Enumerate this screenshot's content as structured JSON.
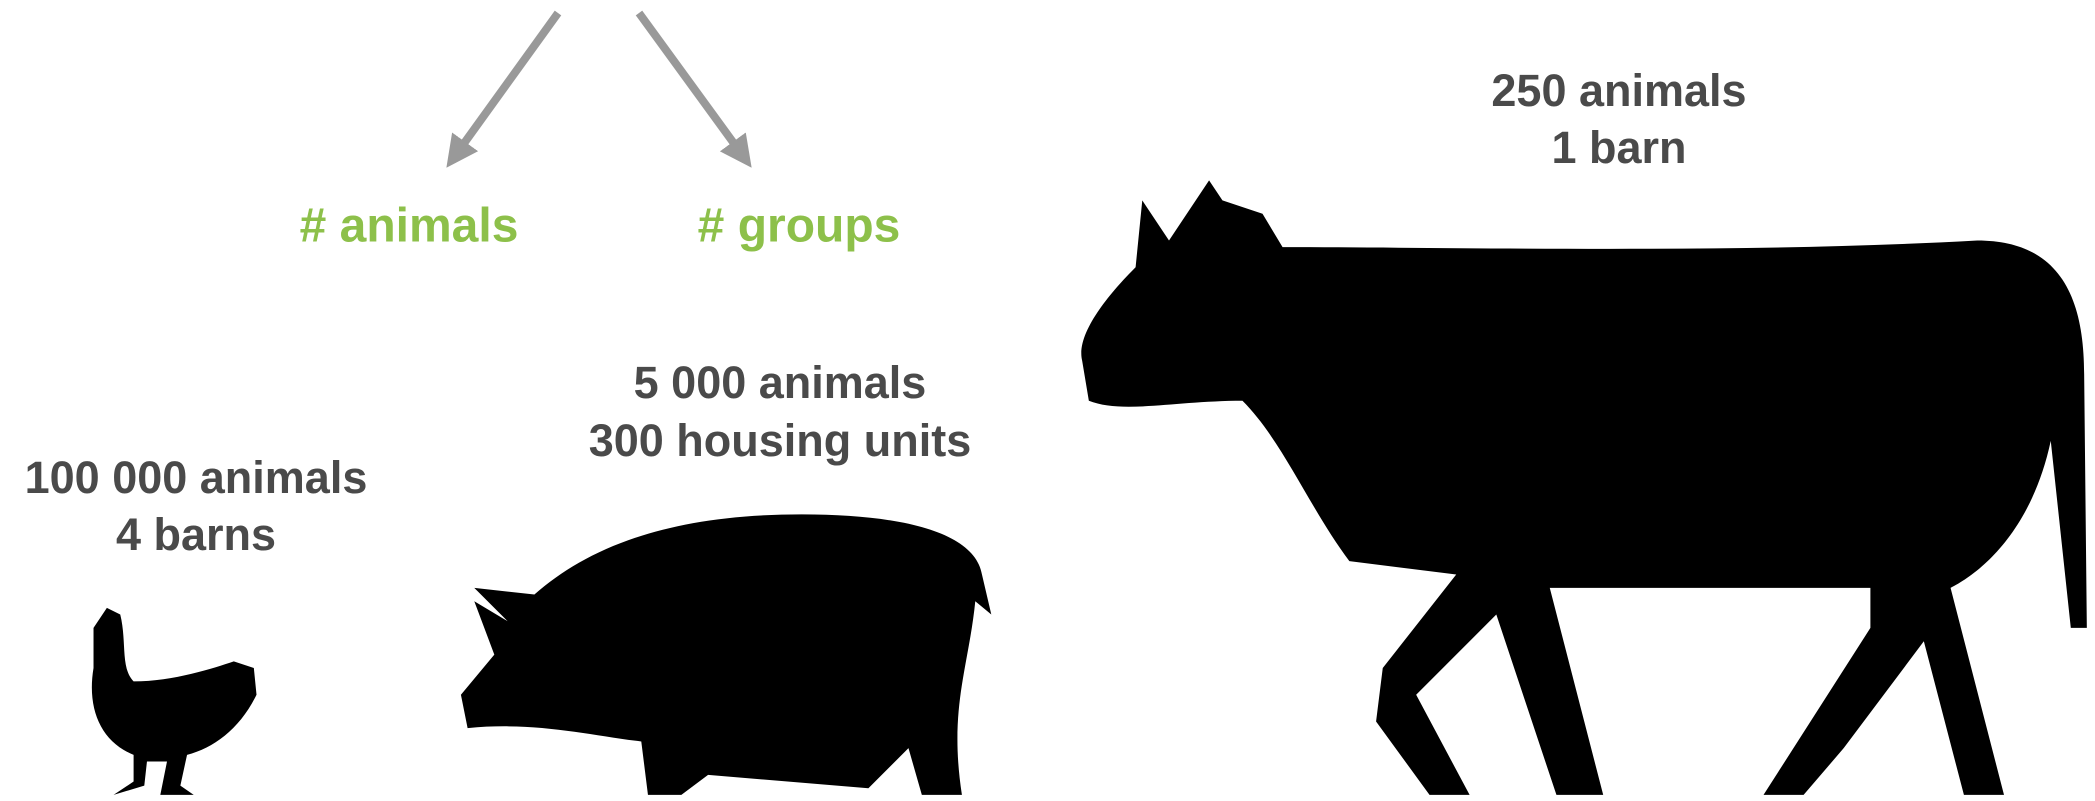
{
  "labels": [
    "# animals",
    "# groups"
  ],
  "animals": [
    {
      "lines": [
        "100 000 animals",
        "4 barns"
      ]
    },
    {
      "lines": [
        "5 000 animals",
        "300 housing units"
      ]
    },
    {
      "lines": [
        "250 animals",
        "1 barn"
      ]
    }
  ]
}
